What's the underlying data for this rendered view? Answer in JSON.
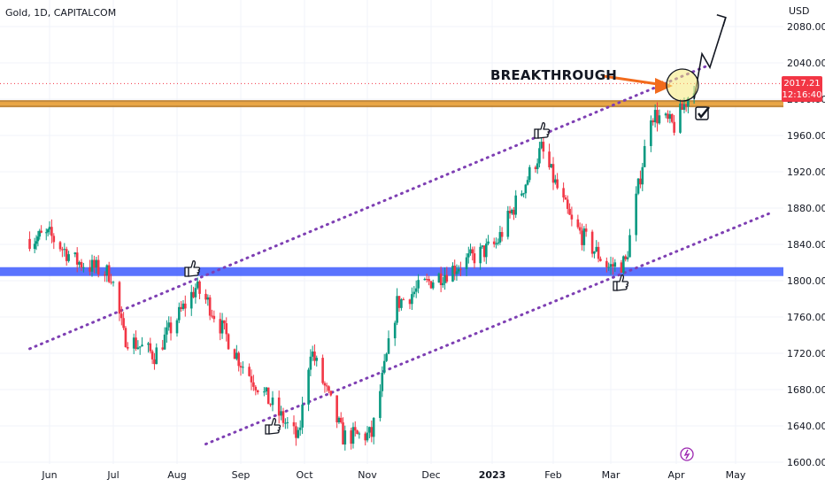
{
  "header": {
    "symbol": "Gold, 1D, CAPITALCOM"
  },
  "price_axis": {
    "unit": "USD"
  },
  "annotation": {
    "text": "BREAKTHROUGH"
  },
  "price_tag": {
    "price": "2017.21",
    "time": "12:16:40",
    "color": "#f23645"
  },
  "colors": {
    "up": "#089981",
    "down": "#f23645",
    "resistance_band": "#b8751c",
    "support_band": "#3d5afe",
    "channel": "#7e3fb3"
  },
  "icons": [
    "thumbs-up-icon",
    "checkmark-icon",
    "lightning-icon",
    "arrow-up-icon"
  ],
  "chart_data": {
    "type": "candlestick",
    "timeframe": "1D",
    "y_ticks": [
      1600,
      1640,
      1680,
      1720,
      1760,
      1800,
      1840,
      1880,
      1920,
      1960,
      2000,
      2040,
      2080
    ],
    "y_tick_labels": [
      "1600.00",
      "1640.00",
      "1680.00",
      "1720.00",
      "1760.00",
      "1800.00",
      "1840.00",
      "1880.00",
      "1920.00",
      "1960.00",
      "2000.00",
      "2040.00",
      "2080.00"
    ],
    "ylim": [
      1597,
      2100
    ],
    "x_tick_labels": [
      "Jun",
      "Jul",
      "Aug",
      "Sep",
      "Oct",
      "Nov",
      "Dec",
      "2023",
      "Feb",
      "Mar",
      "Apr",
      "May"
    ],
    "approx_close_path": [
      [
        "2022-05-20",
        1846
      ],
      [
        "2022-06-01",
        1850
      ],
      [
        "2022-06-13",
        1822
      ],
      [
        "2022-06-30",
        1807
      ],
      [
        "2022-07-06",
        1739
      ],
      [
        "2022-07-21",
        1718
      ],
      [
        "2022-08-10",
        1792
      ],
      [
        "2022-08-16",
        1776
      ],
      [
        "2022-09-01",
        1710
      ],
      [
        "2022-09-15",
        1665
      ],
      [
        "2022-09-28",
        1625
      ],
      [
        "2022-10-04",
        1725
      ],
      [
        "2022-10-20",
        1628
      ],
      [
        "2022-11-03",
        1630
      ],
      [
        "2022-11-15",
        1775
      ],
      [
        "2022-12-01",
        1800
      ],
      [
        "2023-01-03",
        1840
      ],
      [
        "2023-01-26",
        1945
      ],
      [
        "2023-02-10",
        1863
      ],
      [
        "2023-02-28",
        1815
      ],
      [
        "2023-03-08",
        1820
      ],
      [
        "2023-03-20",
        1985
      ],
      [
        "2023-03-31",
        1970
      ],
      [
        "2023-04-10",
        2017
      ]
    ],
    "horizontal_levels": [
      {
        "name": "resistance",
        "price": 1995
      },
      {
        "name": "support",
        "price": 1810
      }
    ],
    "channel_lines": [
      {
        "from": [
          "2022-05-20",
          1725
        ],
        "to": [
          "2023-04-18",
          2038
        ]
      },
      {
        "from": [
          "2022-08-15",
          1620
        ],
        "to": [
          "2023-05-20",
          1876
        ]
      }
    ],
    "projection": [
      [
        "2023-04-10",
        2000
      ],
      [
        "2023-04-14",
        2050
      ],
      [
        "2023-04-18",
        2035
      ],
      [
        "2023-04-26",
        2090
      ]
    ],
    "last_price": 2017.21
  }
}
